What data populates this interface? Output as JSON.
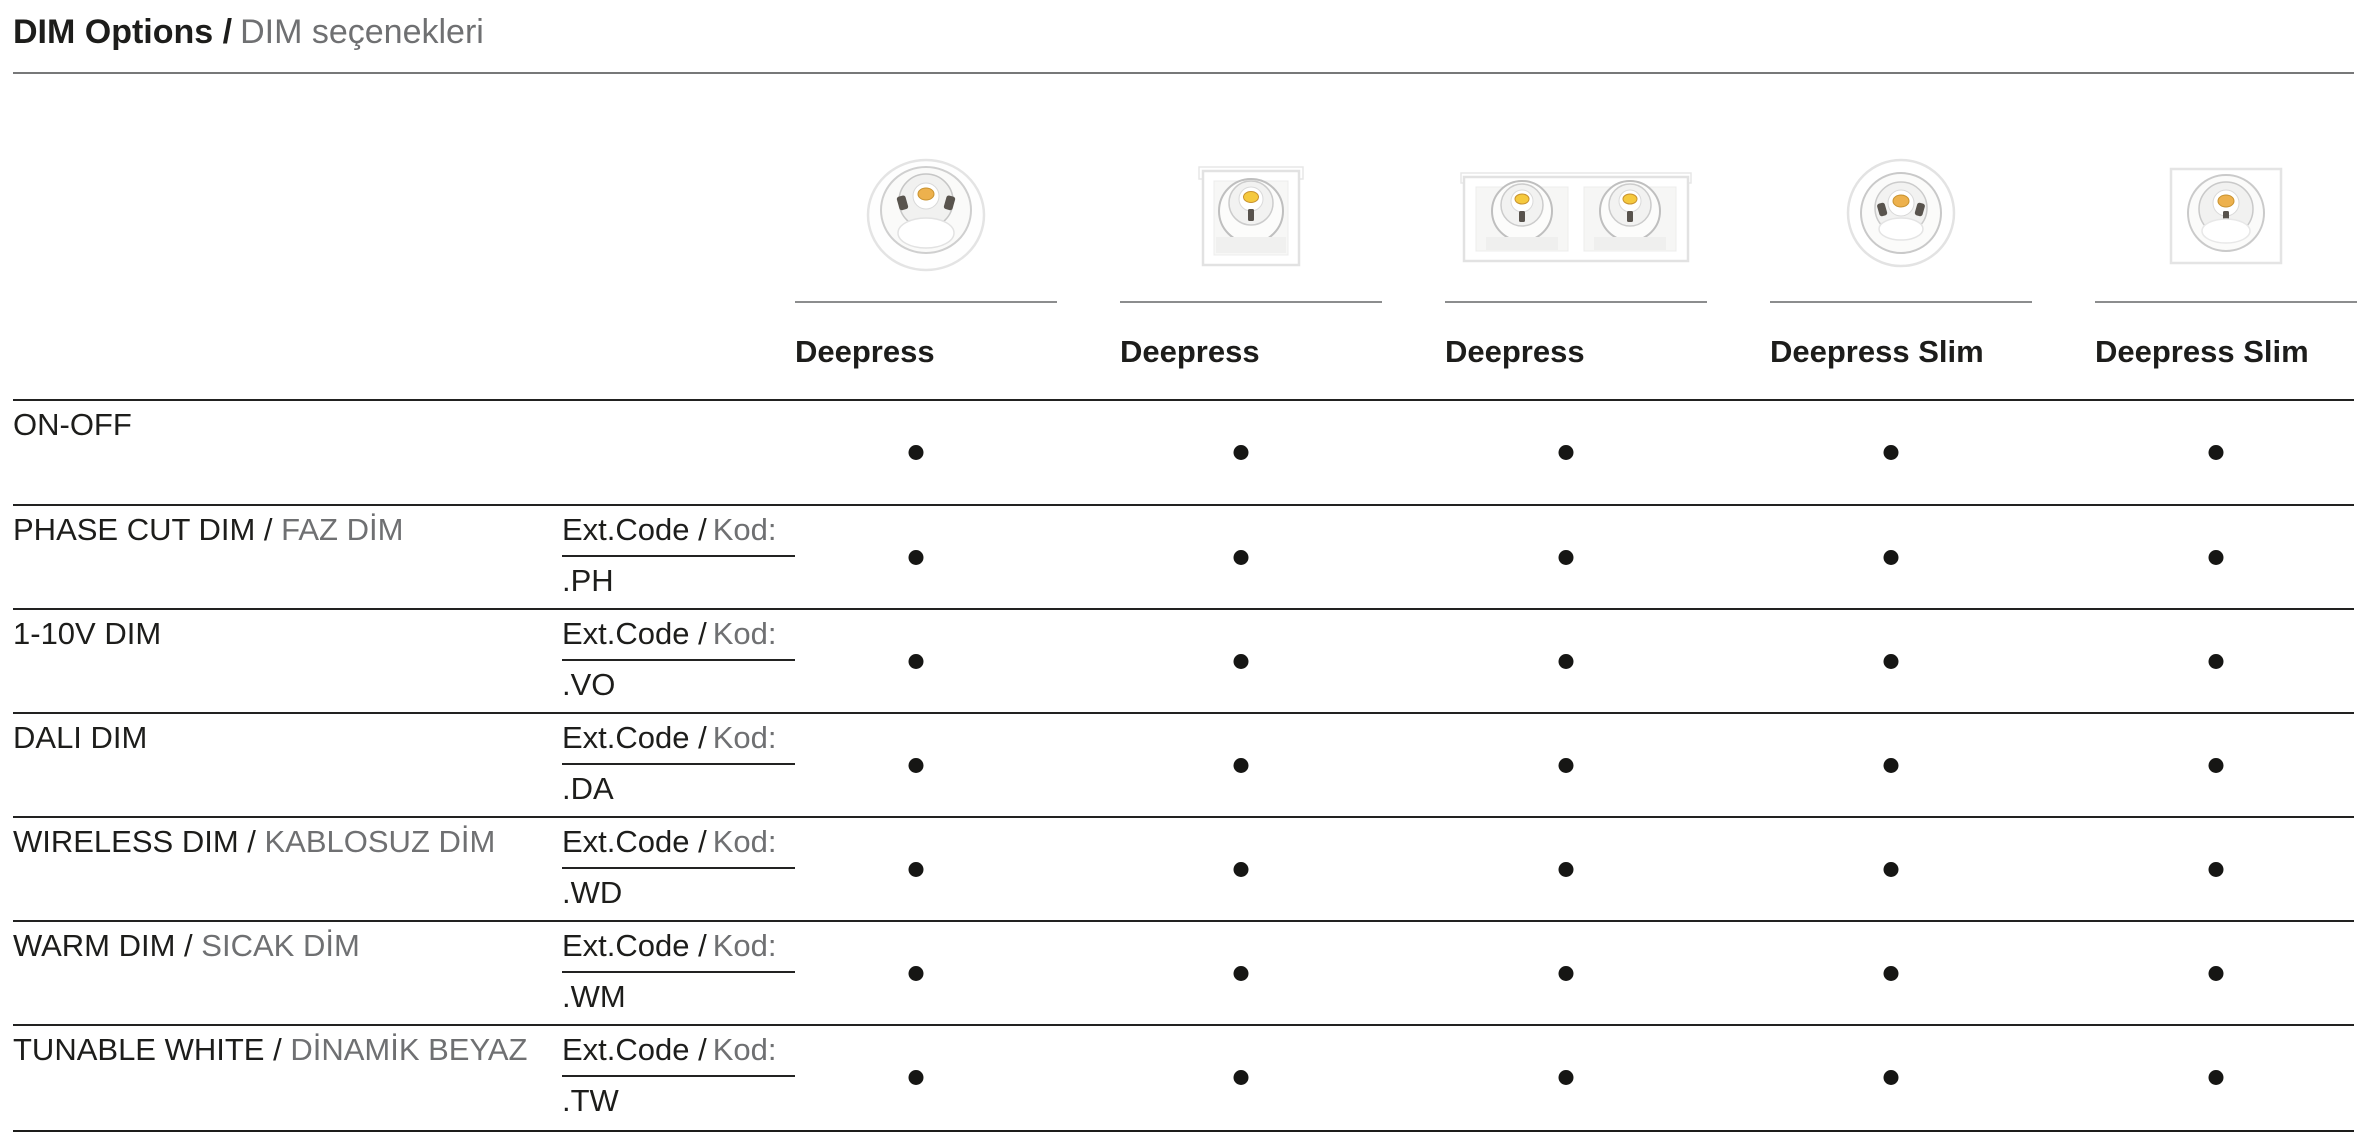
{
  "title": {
    "primary": "DIM Options /",
    "secondary": "DIM seçenekleri"
  },
  "columns": [
    {
      "name": "Deepress",
      "image": "round-recessed-downlight"
    },
    {
      "name": "Deepress",
      "image": "square-recessed-downlight"
    },
    {
      "name": "Deepress",
      "image": "double-square-recessed-downlight"
    },
    {
      "name": "Deepress Slim",
      "image": "round-slim-recessed-downlight"
    },
    {
      "name": "Deepress Slim",
      "image": "square-slim-recessed-downlight"
    }
  ],
  "ext_code_label": {
    "primary": "Ext.Code /",
    "secondary": "Kod:"
  },
  "rows": [
    {
      "label_primary": "ON-OFF",
      "label_secondary": "",
      "code": "",
      "availability": [
        true,
        true,
        true,
        true,
        true
      ]
    },
    {
      "label_primary": "PHASE CUT DIM /",
      "label_secondary": "FAZ DİM",
      "code": ".PH",
      "availability": [
        true,
        true,
        true,
        true,
        true
      ]
    },
    {
      "label_primary": "1-10V DIM",
      "label_secondary": "",
      "code": ".VO",
      "availability": [
        true,
        true,
        true,
        true,
        true
      ]
    },
    {
      "label_primary": "DALI DIM",
      "label_secondary": "",
      "code": ".DA",
      "availability": [
        true,
        true,
        true,
        true,
        true
      ]
    },
    {
      "label_primary": "WIRELESS DIM /",
      "label_secondary": "KABLOSUZ DİM",
      "code": ".WD",
      "availability": [
        true,
        true,
        true,
        true,
        true
      ]
    },
    {
      "label_primary": "WARM DIM /",
      "label_secondary": "SICAK DİM",
      "code": ".WM",
      "availability": [
        true,
        true,
        true,
        true,
        true
      ]
    },
    {
      "label_primary": "TUNABLE WHITE /",
      "label_secondary": "DİNAMİK BEYAZ",
      "code": ".TW",
      "availability": [
        true,
        true,
        true,
        true,
        true
      ]
    }
  ],
  "marker_symbol": "●",
  "colors": {
    "text_black": "#1d1d1b",
    "text_gray": "#6f7072",
    "rule_dark": "#222221",
    "rule_light": "#8c8d8e",
    "led_warm": "#edb14d",
    "led_warm_bright": "#f5c93e"
  }
}
